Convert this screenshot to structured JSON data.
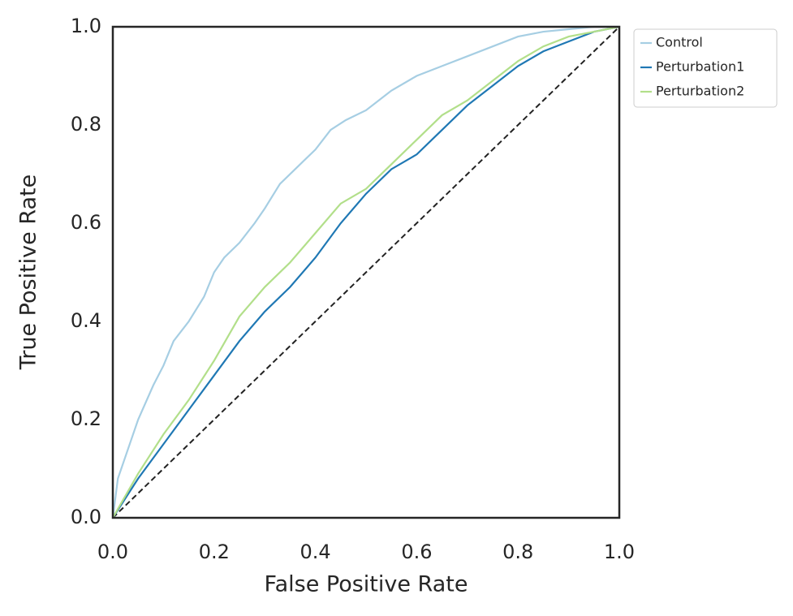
{
  "chart_data": {
    "type": "line",
    "xlabel": "False Positive Rate",
    "ylabel": "True Positive Rate",
    "xlim": [
      0,
      1
    ],
    "ylim": [
      0,
      1
    ],
    "xticks": [
      {
        "value": 0,
        "label": "0.0"
      },
      {
        "value": 0.2,
        "label": "0.2"
      },
      {
        "value": 0.4,
        "label": "0.4"
      },
      {
        "value": 0.6,
        "label": "0.6"
      },
      {
        "value": 0.8,
        "label": "0.8"
      },
      {
        "value": 1,
        "label": "1.0"
      }
    ],
    "yticks": [
      {
        "value": 0,
        "label": "0.0"
      },
      {
        "value": 0.2,
        "label": "0.2"
      },
      {
        "value": 0.4,
        "label": "0.4"
      },
      {
        "value": 0.6,
        "label": "0.6"
      },
      {
        "value": 0.8,
        "label": "0.8"
      },
      {
        "value": 1,
        "label": "1.0"
      }
    ],
    "grid": false,
    "legend": "outside upper right",
    "reference_line": {
      "x": [
        0,
        1
      ],
      "values": [
        0,
        1
      ],
      "color": "#222222",
      "dashed": true
    },
    "series": [
      {
        "name": "Control",
        "color": "#a6cee3",
        "x": [
          0,
          0.01,
          0.03,
          0.05,
          0.08,
          0.1,
          0.12,
          0.15,
          0.18,
          0.2,
          0.22,
          0.25,
          0.28,
          0.3,
          0.33,
          0.36,
          0.4,
          0.43,
          0.46,
          0.5,
          0.55,
          0.6,
          0.65,
          0.7,
          0.75,
          0.8,
          0.85,
          0.9,
          0.95,
          1
        ],
        "values": [
          0,
          0.08,
          0.14,
          0.2,
          0.27,
          0.31,
          0.36,
          0.4,
          0.45,
          0.5,
          0.53,
          0.56,
          0.6,
          0.63,
          0.68,
          0.71,
          0.75,
          0.79,
          0.81,
          0.83,
          0.87,
          0.9,
          0.92,
          0.94,
          0.96,
          0.98,
          0.99,
          0.995,
          1,
          1
        ]
      },
      {
        "name": "Perturbation1",
        "color": "#1f78b4",
        "x": [
          0,
          0.05,
          0.1,
          0.15,
          0.2,
          0.25,
          0.3,
          0.35,
          0.4,
          0.45,
          0.5,
          0.55,
          0.6,
          0.65,
          0.7,
          0.75,
          0.8,
          0.85,
          0.9,
          0.95,
          1
        ],
        "values": [
          0,
          0.08,
          0.15,
          0.22,
          0.29,
          0.36,
          0.42,
          0.47,
          0.53,
          0.6,
          0.66,
          0.71,
          0.74,
          0.79,
          0.84,
          0.88,
          0.92,
          0.95,
          0.97,
          0.99,
          1
        ]
      },
      {
        "name": "Perturbation2",
        "color": "#b2df8a",
        "x": [
          0,
          0.05,
          0.1,
          0.15,
          0.2,
          0.25,
          0.3,
          0.35,
          0.4,
          0.45,
          0.5,
          0.55,
          0.6,
          0.65,
          0.7,
          0.75,
          0.8,
          0.85,
          0.9,
          0.95,
          1
        ],
        "values": [
          0,
          0.09,
          0.17,
          0.24,
          0.32,
          0.41,
          0.47,
          0.52,
          0.58,
          0.64,
          0.67,
          0.72,
          0.77,
          0.82,
          0.85,
          0.89,
          0.93,
          0.96,
          0.98,
          0.99,
          1
        ]
      }
    ]
  }
}
